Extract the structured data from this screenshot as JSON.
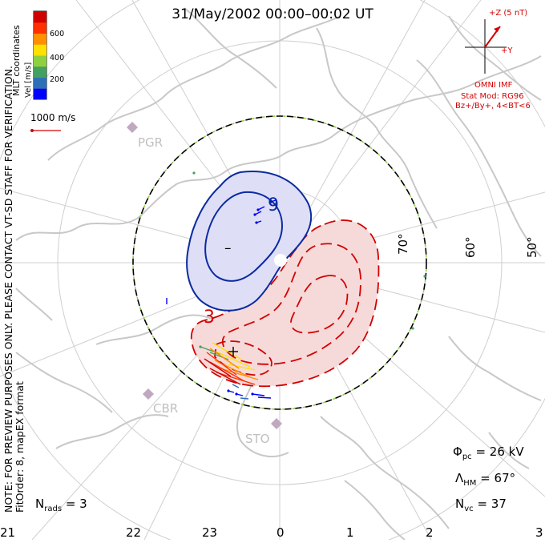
{
  "title": "31/May/2002 00:00–00:02 UT",
  "side_note": {
    "line1": "NOTE: FOR PREVIEW PURPOSES ONLY. PLEASE CONTACT VT-SD STAFF FOR VERIFICATION.",
    "line2": "FitOrder: 8, mapEX format"
  },
  "coords_label": "MLT coordinates",
  "colorbar": {
    "label": "Vel [m/s]",
    "ticks": [
      "600",
      "400",
      "200"
    ],
    "colors": [
      "#0000ff",
      "#2f6fb8",
      "#44a060",
      "#90d040",
      "#ffe000",
      "#ff9000",
      "#ff3000",
      "#d00000"
    ]
  },
  "ref_vector": {
    "label": "1000 m/s",
    "color": "#d40000"
  },
  "imf": {
    "z_label": "+Z (5 nT)",
    "y_label": "+Y",
    "source": "OMNI IMF",
    "stat_mod": "Stat Mod: RG96",
    "condition": "Bz+/By+, 4<BT<6",
    "color": "#d40000"
  },
  "stations": [
    "PGR",
    "CBR",
    "STO"
  ],
  "latitude_labels": [
    "70°",
    "60°",
    "50°"
  ],
  "potential_labels": {
    "negative_value": "9",
    "negative_sign": "–",
    "positive_value": "3",
    "positive_sign": "+"
  },
  "stats": {
    "phi_symbol": "Φ",
    "phi_sub": "pc",
    "phi_value": "= 26 kV",
    "lambda_symbol": "Λ",
    "lambda_sub": "HM",
    "lambda_value": "= 67°",
    "nvc_symbol": "N",
    "nvc_sub": "vc",
    "nvc_value": "= 37",
    "nrads_symbol": "N",
    "nrads_sub": "rads",
    "nrads_value": "= 3"
  },
  "mlt_hours": [
    "21",
    "22",
    "23",
    "0",
    "1",
    "2",
    "3"
  ],
  "colors": {
    "negative_cell": "#0a2aa0",
    "positive_cell": "#d40000",
    "coastline": "#c8c8c8",
    "grid": "#cfcfcf"
  }
}
